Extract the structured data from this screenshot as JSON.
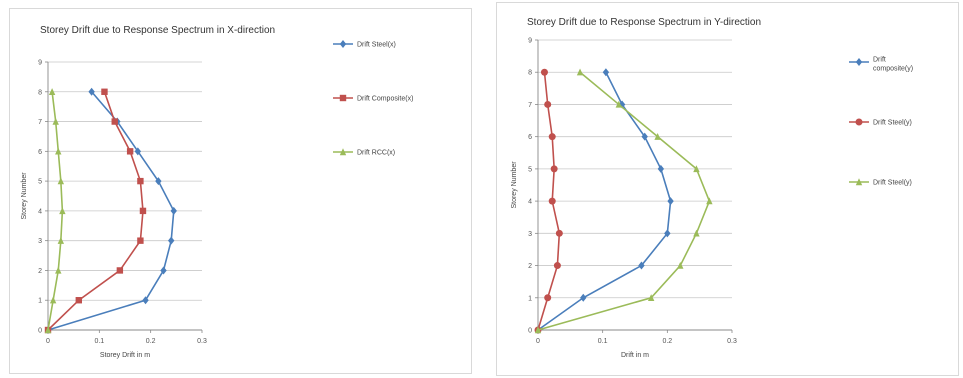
{
  "chart_data": [
    {
      "type": "line",
      "title": "Storey Drift due to Response Spectrum in X-direction",
      "xlabel": "Storey Drift in m",
      "ylabel": "Storey Number",
      "xlim": [
        0,
        0.3
      ],
      "ylim": [
        0,
        9
      ],
      "x_ticks": [
        "0",
        "0.1",
        "0.2",
        "0.3"
      ],
      "y_ticks": [
        "0",
        "1",
        "2",
        "3",
        "4",
        "5",
        "6",
        "7",
        "8",
        "9"
      ],
      "grid": "horizontal",
      "legend_position": "right",
      "y": [
        0,
        1,
        2,
        3,
        4,
        5,
        6,
        7,
        8
      ],
      "series": [
        {
          "name": "Drift Steel(x)",
          "color": "#4a7ebb",
          "marker": "diamond",
          "values": [
            0,
            0.19,
            0.225,
            0.24,
            0.245,
            0.215,
            0.175,
            0.135,
            0.085
          ]
        },
        {
          "name": "Drift Composite(x)",
          "color": "#c0504d",
          "marker": "square",
          "values": [
            0,
            0.06,
            0.14,
            0.18,
            0.185,
            0.18,
            0.16,
            0.13,
            0.11
          ]
        },
        {
          "name": "Drift RCC(x)",
          "color": "#9bbb59",
          "marker": "triangle",
          "values": [
            0,
            0.01,
            0.02,
            0.025,
            0.028,
            0.025,
            0.02,
            0.015,
            0.008
          ]
        }
      ]
    },
    {
      "type": "line",
      "title": "Storey Drift due to Response Spectrum in Y-direction",
      "xlabel": "Drift in m",
      "ylabel": "Storey Number",
      "xlim": [
        0,
        0.3
      ],
      "ylim": [
        0,
        9
      ],
      "x_ticks": [
        "0",
        "0.1",
        "0.2",
        "0.3"
      ],
      "y_ticks": [
        "0",
        "1",
        "2",
        "3",
        "4",
        "5",
        "6",
        "7",
        "8",
        "9"
      ],
      "grid": "horizontal",
      "legend_position": "right",
      "y": [
        0,
        1,
        2,
        3,
        4,
        5,
        6,
        7,
        8
      ],
      "series": [
        {
          "name": "Drift composite(y)",
          "color": "#4a7ebb",
          "marker": "diamond",
          "values": [
            0,
            0.07,
            0.16,
            0.2,
            0.205,
            0.19,
            0.165,
            0.13,
            0.105
          ]
        },
        {
          "name": "Drift Steel(y)",
          "color": "#c0504d",
          "marker": "circle",
          "values": [
            0,
            0.015,
            0.03,
            0.033,
            0.022,
            0.025,
            0.022,
            0.015,
            0.01
          ]
        },
        {
          "name": "Drift Steel(y)",
          "color": "#9bbb59",
          "marker": "triangle",
          "values": [
            0,
            0.175,
            0.22,
            0.245,
            0.265,
            0.245,
            0.185,
            0.125,
            0.065
          ]
        }
      ]
    }
  ]
}
